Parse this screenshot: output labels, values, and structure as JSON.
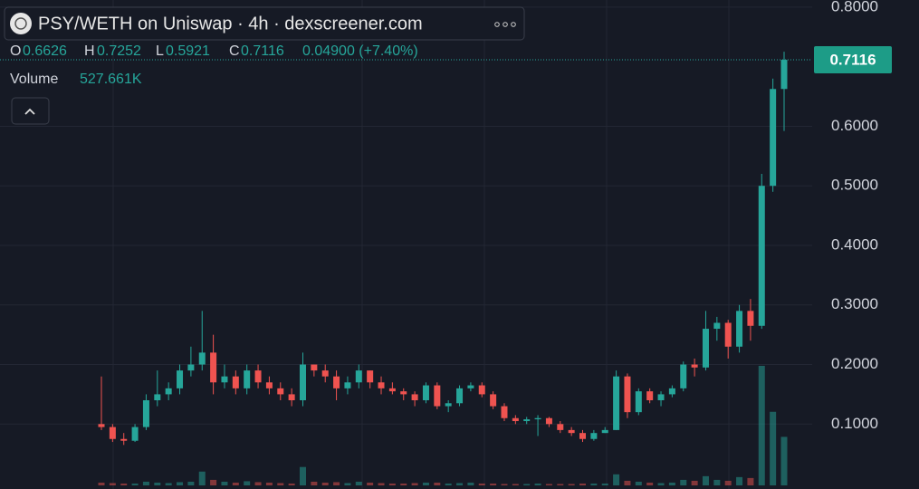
{
  "header": {
    "title": "PSY/WETH on Uniswap · 4h · dexscreener.com",
    "ohlc_labels": [
      "O",
      "H",
      "L",
      "C"
    ],
    "change": "0.04900 (+7.40%)"
  },
  "chart_data": {
    "type": "candlestick",
    "categories": [
      null,
      null,
      null,
      null,
      null,
      null,
      null,
      null,
      null,
      null,
      null,
      null,
      null,
      null,
      null,
      null,
      null,
      null,
      null,
      null,
      null,
      null,
      null,
      null,
      null,
      null,
      null,
      null,
      null,
      null,
      null,
      null,
      null,
      null,
      null,
      null,
      null,
      null,
      null,
      null,
      null,
      null,
      null,
      null,
      null,
      null,
      null,
      null,
      null,
      null,
      null,
      null,
      null,
      null,
      null,
      null,
      null,
      null,
      null,
      null,
      null,
      null
    ],
    "open": [
      0.1,
      0.095,
      0.075,
      0.072,
      0.095,
      0.14,
      0.15,
      0.16,
      0.19,
      0.2,
      0.22,
      0.17,
      0.18,
      0.16,
      0.19,
      0.17,
      0.16,
      0.15,
      0.14,
      0.2,
      0.19,
      0.18,
      0.16,
      0.17,
      0.19,
      0.17,
      0.16,
      0.155,
      0.15,
      0.14,
      0.165,
      0.13,
      0.135,
      0.16,
      0.165,
      0.15,
      0.13,
      0.11,
      0.105,
      0.108,
      0.11,
      0.1,
      0.09,
      0.085,
      0.075,
      0.085,
      0.09,
      0.18,
      0.12,
      0.155,
      0.14,
      0.15,
      0.16,
      0.2,
      0.195,
      0.26,
      0.27,
      0.23,
      0.29,
      0.265,
      0.5,
      0.6626
    ],
    "high": [
      0.18,
      0.1,
      0.085,
      0.1,
      0.15,
      0.19,
      0.17,
      0.2,
      0.23,
      0.29,
      0.25,
      0.2,
      0.19,
      0.2,
      0.2,
      0.18,
      0.17,
      0.16,
      0.22,
      0.2,
      0.2,
      0.19,
      0.18,
      0.2,
      0.19,
      0.18,
      0.17,
      0.16,
      0.155,
      0.17,
      0.17,
      0.14,
      0.165,
      0.17,
      0.17,
      0.155,
      0.135,
      0.115,
      0.112,
      0.115,
      0.112,
      0.105,
      0.095,
      0.09,
      0.09,
      0.095,
      0.19,
      0.185,
      0.16,
      0.16,
      0.155,
      0.165,
      0.205,
      0.21,
      0.29,
      0.28,
      0.275,
      0.3,
      0.31,
      0.52,
      0.68,
      0.7252
    ],
    "low": [
      0.09,
      0.07,
      0.065,
      0.07,
      0.09,
      0.13,
      0.14,
      0.15,
      0.18,
      0.19,
      0.15,
      0.16,
      0.15,
      0.15,
      0.16,
      0.15,
      0.14,
      0.13,
      0.13,
      0.18,
      0.17,
      0.14,
      0.15,
      0.16,
      0.16,
      0.15,
      0.15,
      0.14,
      0.13,
      0.135,
      0.125,
      0.12,
      0.13,
      0.155,
      0.145,
      0.125,
      0.105,
      0.1,
      0.1,
      0.08,
      0.095,
      0.085,
      0.08,
      0.07,
      0.072,
      0.085,
      0.09,
      0.11,
      0.115,
      0.135,
      0.13,
      0.145,
      0.155,
      0.18,
      0.19,
      0.24,
      0.21,
      0.22,
      0.24,
      0.26,
      0.49,
      0.5921
    ],
    "close": [
      0.095,
      0.075,
      0.072,
      0.095,
      0.14,
      0.15,
      0.16,
      0.19,
      0.2,
      0.22,
      0.17,
      0.18,
      0.16,
      0.19,
      0.17,
      0.16,
      0.15,
      0.14,
      0.2,
      0.19,
      0.18,
      0.16,
      0.17,
      0.19,
      0.17,
      0.16,
      0.155,
      0.15,
      0.14,
      0.165,
      0.13,
      0.135,
      0.16,
      0.165,
      0.15,
      0.13,
      0.11,
      0.105,
      0.108,
      0.11,
      0.1,
      0.09,
      0.085,
      0.075,
      0.085,
      0.09,
      0.18,
      0.12,
      0.155,
      0.14,
      0.15,
      0.16,
      0.2,
      0.195,
      0.26,
      0.27,
      0.23,
      0.29,
      0.265,
      0.5,
      0.6626,
      0.7116
    ],
    "up_color": "#26a69a",
    "down_color": "#ef5350",
    "ylim": [
      -0.009,
      0.812
    ],
    "yticks": [
      {
        "value": 0.1,
        "label": "0.1000"
      },
      {
        "value": 0.2,
        "label": "0.2000"
      },
      {
        "value": 0.3,
        "label": "0.3000"
      },
      {
        "value": 0.4,
        "label": "0.4000"
      },
      {
        "value": 0.5,
        "label": "0.5000"
      },
      {
        "value": 0.6,
        "label": "0.6000"
      },
      {
        "value": 0.8,
        "label": "0.8000"
      }
    ],
    "grid": true,
    "volume": {
      "name": "Volume",
      "values": [
        30,
        25,
        20,
        20,
        40,
        30,
        25,
        35,
        40,
        150,
        60,
        40,
        30,
        45,
        35,
        30,
        25,
        20,
        200,
        40,
        30,
        35,
        25,
        40,
        30,
        25,
        20,
        20,
        25,
        30,
        30,
        20,
        25,
        30,
        20,
        20,
        15,
        15,
        15,
        20,
        15,
        15,
        15,
        20,
        20,
        20,
        120,
        50,
        40,
        30,
        25,
        30,
        60,
        50,
        100,
        60,
        50,
        90,
        80,
        1300,
        800,
        527.661
      ],
      "current_label": "527.661K"
    }
  }
}
